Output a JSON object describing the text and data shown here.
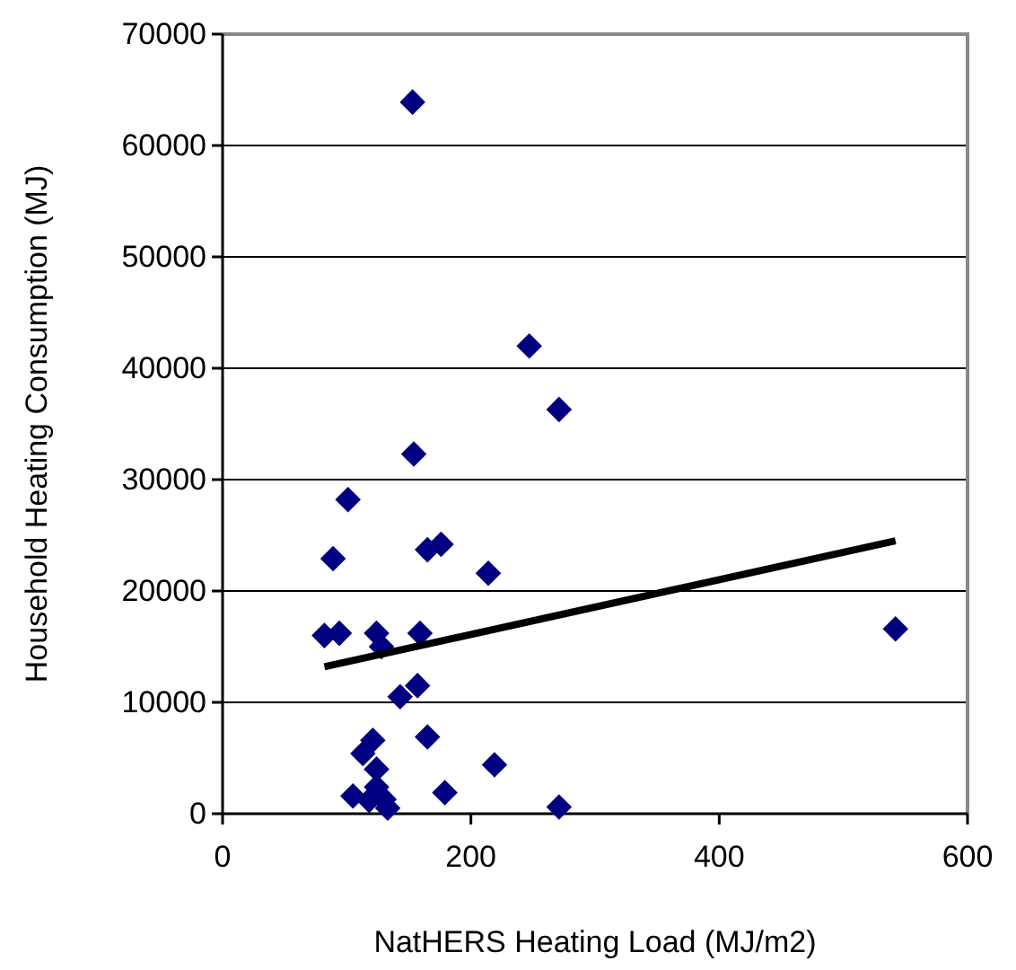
{
  "chart_data": {
    "type": "scatter",
    "xlabel": "NatHERS Heating Load (MJ/m2)",
    "ylabel": "Household Heating Consumption (MJ)",
    "xlim": [
      0,
      600
    ],
    "xticks": [
      0,
      200,
      400,
      600
    ],
    "ylim": [
      0,
      70000
    ],
    "yticks": [
      0,
      10000,
      20000,
      30000,
      40000,
      50000,
      60000,
      70000
    ],
    "grid": "y",
    "marker": "diamond",
    "series": [
      {
        "color": "#000080",
        "x": [
          153,
          247,
          271,
          154,
          101,
          89,
          165,
          176,
          214,
          82,
          94,
          124,
          128,
          159,
          157,
          143,
          165,
          121,
          113,
          124,
          219,
          105,
          118,
          124,
          130,
          133,
          179,
          271,
          542
        ],
        "values": [
          63900,
          42000,
          36300,
          32300,
          28200,
          22900,
          23700,
          24200,
          21600,
          16000,
          16200,
          16200,
          15000,
          16200,
          11500,
          10500,
          6900,
          6600,
          5400,
          4000,
          4400,
          1600,
          1200,
          2400,
          1300,
          500,
          1900,
          600,
          16600
        ]
      },
      {
        "type": "line",
        "color": "#000000",
        "x": [
          82,
          542
        ],
        "values": [
          13200,
          24500
        ],
        "marker": "none",
        "line_style": "solid"
      }
    ]
  }
}
